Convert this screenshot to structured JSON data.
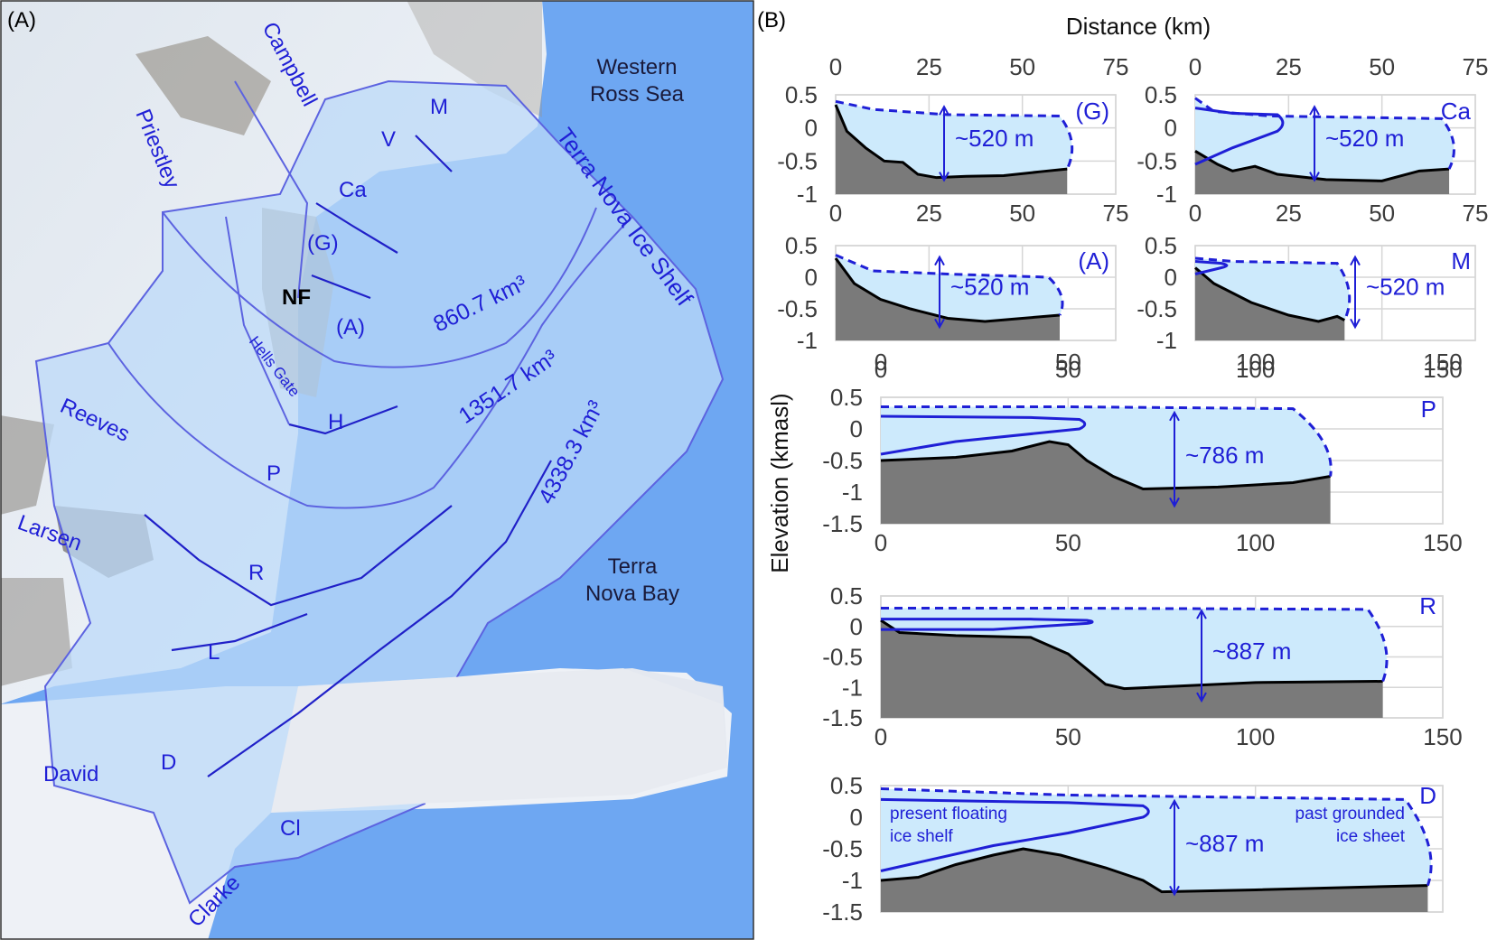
{
  "panel_a": {
    "letter": "(A)",
    "sea": {
      "line1": "Western",
      "line2": "Ross Sea"
    },
    "ice_shelf": "Terra Nova Ice Shelf",
    "bay": {
      "line1": "Terra",
      "line2": "Nova Bay"
    },
    "glaciers": {
      "campbell": "Campbell",
      "priestley": "Priestley",
      "reeves": "Reeves",
      "larsen": "Larsen",
      "david": "David",
      "clarke": "Clarke",
      "hells_gate": "Hells Gate"
    },
    "codes": {
      "m": "M",
      "v": "V",
      "ca": "Ca",
      "g": "(G)",
      "a": "(A)",
      "h": "H",
      "p": "P",
      "r": "R",
      "l": "L",
      "d": "D",
      "cl": "Cl"
    },
    "nf": "NF",
    "volumes": [
      "860.7 km³",
      "1351.7 km³",
      "4338.3 km³"
    ]
  },
  "panel_b": {
    "letter": "(B)",
    "top_axis_title": "Distance (km)",
    "y_axis_title": "Elevation  (kmasl)",
    "annotation_present": [
      "present floating",
      "ice shelf"
    ],
    "annotation_past": [
      "past grounded",
      "ice sheet"
    ]
  },
  "chart_data": [
    {
      "type": "area",
      "id": "G",
      "label": "(G)",
      "x_ticks": [
        0,
        25,
        50,
        75
      ],
      "xlim": [
        0,
        75
      ],
      "y_ticks": [
        0.5,
        0,
        -0.5,
        -1
      ],
      "ylim": [
        -1,
        0.5
      ],
      "thickness": "~520 m",
      "bed": [
        [
          0,
          0.35
        ],
        [
          3,
          -0.05
        ],
        [
          8,
          -0.3
        ],
        [
          13,
          -0.5
        ],
        [
          18,
          -0.52
        ],
        [
          22,
          -0.7
        ],
        [
          27,
          -0.75
        ],
        [
          35,
          -0.73
        ],
        [
          45,
          -0.72
        ],
        [
          55,
          -0.66
        ],
        [
          62,
          -0.62
        ]
      ],
      "past_surface": [
        [
          0,
          0.4
        ],
        [
          10,
          0.28
        ],
        [
          30,
          0.2
        ],
        [
          60,
          0.18
        ]
      ],
      "past_front": [
        62,
        0.18
      ],
      "present_shelf": null
    },
    {
      "type": "area",
      "id": "Ca",
      "label": "Ca",
      "x_ticks": [
        0,
        25,
        50,
        75
      ],
      "xlim": [
        0,
        75
      ],
      "y_ticks": [
        0.5,
        0,
        -0.5,
        -1
      ],
      "ylim": [
        -1,
        0.5
      ],
      "thickness": "~520 m",
      "bed": [
        [
          0,
          -0.35
        ],
        [
          6,
          -0.55
        ],
        [
          10,
          -0.65
        ],
        [
          16,
          -0.58
        ],
        [
          22,
          -0.7
        ],
        [
          35,
          -0.78
        ],
        [
          50,
          -0.8
        ],
        [
          60,
          -0.65
        ],
        [
          68,
          -0.62
        ]
      ],
      "past_surface": [
        [
          0,
          0.45
        ],
        [
          5,
          0.25
        ],
        [
          20,
          0.18
        ],
        [
          66,
          0.14
        ]
      ],
      "past_front": [
        68,
        0.14
      ],
      "present_shelf": {
        "top": [
          [
            0,
            0.3
          ],
          [
            10,
            0.22
          ],
          [
            22,
            0.2
          ]
        ],
        "bottom": [
          [
            0,
            -0.55
          ],
          [
            10,
            -0.3
          ],
          [
            22,
            -0.05
          ]
        ]
      }
    },
    {
      "type": "area",
      "id": "A",
      "label": "(A)",
      "x_ticks": [],
      "xlim": [
        0,
        75
      ],
      "y_ticks": [
        0.5,
        0,
        -0.5,
        -1
      ],
      "ylim": [
        -1,
        0.5
      ],
      "thickness": "~520 m",
      "bed": [
        [
          0,
          0.3
        ],
        [
          5,
          -0.1
        ],
        [
          12,
          -0.35
        ],
        [
          20,
          -0.5
        ],
        [
          30,
          -0.65
        ],
        [
          40,
          -0.7
        ],
        [
          50,
          -0.65
        ],
        [
          60,
          -0.6
        ]
      ],
      "past_surface": [
        [
          0,
          0.35
        ],
        [
          10,
          0.1
        ],
        [
          30,
          0.05
        ],
        [
          57,
          0.0
        ]
      ],
      "past_front": [
        59,
        0.0
      ],
      "present_shelf": null
    },
    {
      "type": "area",
      "id": "M",
      "label": "M",
      "x_ticks": [],
      "xlim": [
        0,
        75
      ],
      "y_ticks": [
        0.5,
        0,
        -0.5,
        -1
      ],
      "ylim": [
        -1,
        0.5
      ],
      "thickness": "~520 m",
      "bed": [
        [
          0,
          0.15
        ],
        [
          5,
          -0.1
        ],
        [
          15,
          -0.4
        ],
        [
          25,
          -0.6
        ],
        [
          33,
          -0.7
        ],
        [
          38,
          -0.62
        ],
        [
          40,
          -0.68
        ]
      ],
      "past_surface": [
        [
          0,
          0.3
        ],
        [
          10,
          0.25
        ],
        [
          38,
          0.22
        ]
      ],
      "past_front": [
        40,
        0.2
      ],
      "present_shelf": {
        "top": [
          [
            0,
            0.25
          ],
          [
            7,
            0.22
          ]
        ],
        "bottom": [
          [
            0,
            0.05
          ],
          [
            7,
            0.15
          ]
        ]
      }
    },
    {
      "type": "area",
      "id": "P",
      "label": "P",
      "x_ticks": [
        0,
        50,
        100,
        150
      ],
      "xlim": [
        0,
        150
      ],
      "y_ticks": [
        0.5,
        0,
        -0.5,
        -1,
        -1.5
      ],
      "ylim": [
        -1.5,
        0.5
      ],
      "thickness": "~786 m",
      "bed": [
        [
          0,
          -0.5
        ],
        [
          20,
          -0.45
        ],
        [
          35,
          -0.35
        ],
        [
          45,
          -0.2
        ],
        [
          50,
          -0.25
        ],
        [
          55,
          -0.5
        ],
        [
          62,
          -0.75
        ],
        [
          70,
          -0.95
        ],
        [
          90,
          -0.92
        ],
        [
          110,
          -0.85
        ],
        [
          120,
          -0.75
        ]
      ],
      "past_surface": [
        [
          0,
          0.35
        ],
        [
          50,
          0.35
        ],
        [
          110,
          0.32
        ]
      ],
      "past_front": [
        118,
        0.32
      ],
      "present_shelf": {
        "top": [
          [
            0,
            0.2
          ],
          [
            40,
            0.18
          ],
          [
            53,
            0.15
          ]
        ],
        "bottom": [
          [
            0,
            -0.4
          ],
          [
            20,
            -0.2
          ],
          [
            53,
            0.0
          ]
        ]
      }
    },
    {
      "type": "area",
      "id": "R",
      "label": "R",
      "x_ticks": [
        0,
        50,
        100,
        150
      ],
      "xlim": [
        0,
        150
      ],
      "y_ticks": [
        0.5,
        0,
        -0.5,
        -1,
        -1.5
      ],
      "ylim": [
        -1.5,
        0.5
      ],
      "thickness": "~887 m",
      "bed": [
        [
          0,
          0.1
        ],
        [
          5,
          -0.1
        ],
        [
          20,
          -0.15
        ],
        [
          40,
          -0.18
        ],
        [
          50,
          -0.45
        ],
        [
          60,
          -0.95
        ],
        [
          65,
          -1.02
        ],
        [
          100,
          -0.92
        ],
        [
          134,
          -0.9
        ]
      ],
      "past_surface": [
        [
          0,
          0.3
        ],
        [
          50,
          0.3
        ],
        [
          130,
          0.28
        ]
      ],
      "past_front": [
        134,
        0.2
      ],
      "present_shelf": {
        "top": [
          [
            0,
            0.12
          ],
          [
            40,
            0.12
          ],
          [
            55,
            0.1
          ]
        ],
        "bottom": [
          [
            0,
            -0.05
          ],
          [
            30,
            -0.05
          ],
          [
            55,
            0.05
          ]
        ]
      }
    },
    {
      "type": "area",
      "id": "D",
      "label": "D",
      "x_ticks": [],
      "xlim": [
        0,
        150
      ],
      "y_ticks": [
        0.5,
        0,
        -0.5,
        -1,
        -1.5
      ],
      "ylim": [
        -1.5,
        0.5
      ],
      "thickness": "~887 m",
      "bed": [
        [
          0,
          -1.0
        ],
        [
          10,
          -0.95
        ],
        [
          20,
          -0.75
        ],
        [
          30,
          -0.6
        ],
        [
          38,
          -0.5
        ],
        [
          48,
          -0.6
        ],
        [
          60,
          -0.8
        ],
        [
          70,
          -1.0
        ],
        [
          75,
          -1.18
        ],
        [
          100,
          -1.15
        ],
        [
          146,
          -1.08
        ]
      ],
      "past_surface": [
        [
          0,
          0.45
        ],
        [
          50,
          0.35
        ],
        [
          140,
          0.28
        ]
      ],
      "past_front": [
        146,
        0.1
      ],
      "present_shelf": {
        "top": [
          [
            0,
            0.28
          ],
          [
            50,
            0.23
          ],
          [
            70,
            0.18
          ]
        ],
        "bottom": [
          [
            0,
            -0.85
          ],
          [
            30,
            -0.45
          ],
          [
            50,
            -0.25
          ],
          [
            70,
            0.0
          ]
        ]
      }
    }
  ]
}
